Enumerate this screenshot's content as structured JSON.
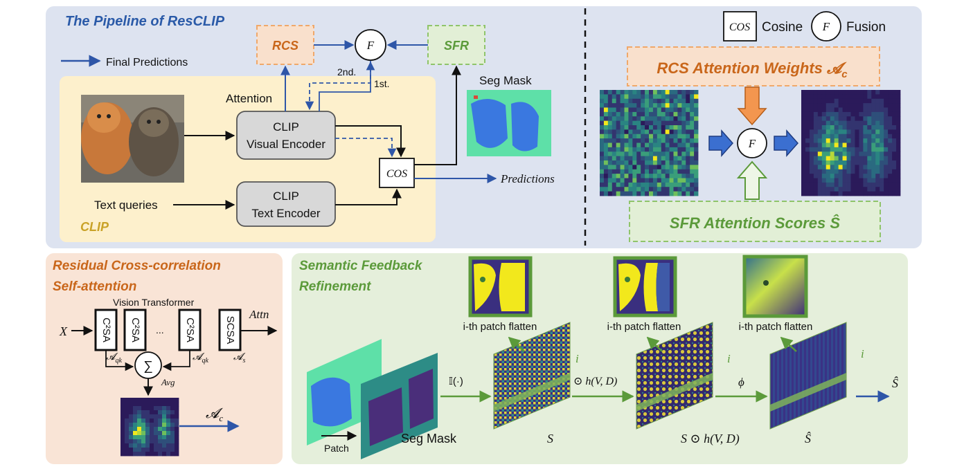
{
  "pipeline": {
    "title": "The Pipeline of ResCLIP",
    "legend_final": "Final Predictions",
    "rcs": "RCS",
    "sfr": "SFR",
    "fusion": "F",
    "second": "2nd.",
    "first": "1st.",
    "attention": "Attention",
    "visual_encoder_1": "CLIP",
    "visual_encoder_2": "Visual Encoder",
    "text_encoder_1": "CLIP",
    "text_encoder_2": "Text Encoder",
    "text_queries": "Text queries",
    "clip_label": "CLIP",
    "cos": "COS",
    "seg_mask": "Seg Mask",
    "predictions": "Predictions"
  },
  "legend_right": {
    "cos": "COS",
    "cosine": "Cosine",
    "f": "F",
    "fusion": "Fusion",
    "rcs_weights": "RCS Attention Weights",
    "rcs_symbol": "𝓐",
    "rcs_sub": "c",
    "sfr_scores": "SFR Attention Scores",
    "sfr_symbol": "Ŝ",
    "fusion_circle": "F"
  },
  "rcs_panel": {
    "title_1": "Residual Cross-correlation",
    "title_2": "Self-attention",
    "vit": "Vision Transformer",
    "x": "X",
    "block1": "C²SA",
    "block2": "C²SA",
    "dots": "...",
    "block3": "C²SA",
    "block4": "SCSA",
    "attn": "Attn",
    "sum": "∑",
    "aqk1": "𝓐",
    "aqk1_sub": "qk",
    "aqk2": "𝓐",
    "aqk2_sub": "qk",
    "as": "𝓐",
    "as_sub": "s",
    "avg": "Avg",
    "ac": "𝓐",
    "ac_sub": "c"
  },
  "sfr_panel": {
    "title_1": "Semantic Feedback",
    "title_2": "Refinement",
    "patch": "Patch",
    "seg_mask": "Seg Mask",
    "indicator": "𝕀(·)",
    "odot_h": "⊙ h(V, D)",
    "phi": "ϕ",
    "s": "S",
    "s_odot": "S ⊙ h(V, D)",
    "s_hat": "Ŝ",
    "out": "Ŝ",
    "i1": "i",
    "i2": "i",
    "i3": "i",
    "flatten1": "i-th patch flatten",
    "flatten2": "i-th patch flatten",
    "flatten3": "i-th patch flatten"
  },
  "colors": {
    "top_bg": "#dde3f0",
    "rcs_bg": "#f9e4d6",
    "sfr_bg": "#e5efdb",
    "clip_bg": "#fdf0cc",
    "blue_arrow": "#2e56a8",
    "orange": "#c9661a",
    "green": "#5b9a3a",
    "navy": "#2a3f8f",
    "gold": "#c9a227",
    "viridis_dark": "#3b1f66",
    "viridis_yellow": "#f2e81c"
  }
}
